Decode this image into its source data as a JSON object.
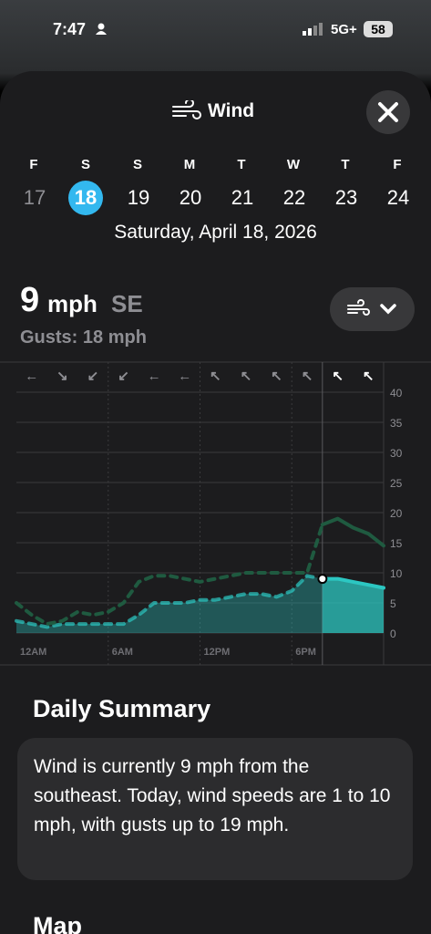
{
  "status": {
    "time": "7:47",
    "network": "5G+",
    "battery": "58"
  },
  "header": {
    "title": "Wind"
  },
  "days": [
    {
      "letter": "F",
      "date": "17"
    },
    {
      "letter": "S",
      "date": "18"
    },
    {
      "letter": "S",
      "date": "19"
    },
    {
      "letter": "M",
      "date": "20"
    },
    {
      "letter": "T",
      "date": "21"
    },
    {
      "letter": "W",
      "date": "22"
    },
    {
      "letter": "T",
      "date": "23"
    },
    {
      "letter": "F",
      "date": "24"
    }
  ],
  "selected_day": 1,
  "full_date": "Saturday, April 18, 2026",
  "current": {
    "speed": "9",
    "unit": "mph",
    "direction": "SE",
    "gusts": "Gusts: 18 mph"
  },
  "chart": {
    "type": "area",
    "directions": [
      "←",
      "↘",
      "↙",
      "↙",
      "←",
      "←",
      "↖",
      "↖",
      "↖",
      "↖",
      "↖",
      "↖"
    ],
    "x": [
      0,
      1,
      2,
      3,
      4,
      5,
      6,
      7,
      8,
      9,
      10,
      11,
      12,
      13,
      14,
      15,
      16,
      17,
      18,
      19,
      20,
      21,
      22,
      23,
      24
    ],
    "xlim": [
      0,
      24
    ],
    "xticks": [
      {
        "value": 0,
        "label": "12AM"
      },
      {
        "value": 6,
        "label": "6AM"
      },
      {
        "value": 12,
        "label": "12PM"
      },
      {
        "value": 18,
        "label": "6PM"
      }
    ],
    "ylim": [
      0,
      40
    ],
    "yticks": [
      0,
      5,
      10,
      15,
      20,
      25,
      30,
      35,
      40
    ],
    "current_index": 20,
    "series": [
      {
        "color": "#2cc7c2",
        "values": [
          2,
          1.5,
          1,
          1.5,
          1.5,
          1.5,
          1.5,
          1.5,
          3,
          5,
          5,
          5,
          5.5,
          5.5,
          6,
          6.5,
          6.5,
          6,
          7,
          9.5,
          9,
          9,
          8.5,
          8,
          7.5
        ]
      },
      {
        "color": "#1f5a40",
        "values": [
          5,
          3,
          1.5,
          2,
          3.5,
          3,
          3.5,
          5,
          8.5,
          9.5,
          9.5,
          9,
          8.5,
          9,
          9.5,
          10,
          10,
          10,
          10,
          10,
          18,
          19,
          17.5,
          16.5,
          14.5
        ]
      }
    ]
  },
  "summary": {
    "title": "Daily Summary",
    "text": "Wind is currently 9 mph from the southeast. Today, wind speeds are 1 to 10 mph, with gusts up to 19 mph."
  },
  "map": {
    "title": "Map"
  }
}
